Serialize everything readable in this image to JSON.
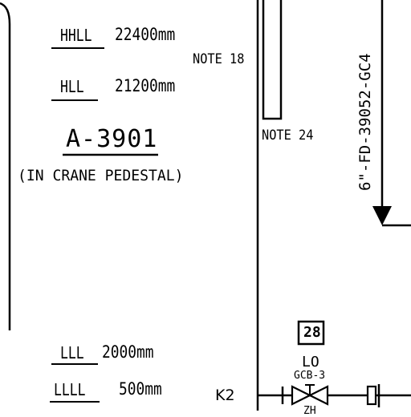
{
  "levels": [
    {
      "label": "HHLL",
      "value": "22400mm"
    },
    {
      "label": "HLL",
      "value": "21200mm"
    },
    {
      "label": "LLL",
      "value": "2000mm"
    },
    {
      "label": "LLLL",
      "value": "500mm"
    }
  ],
  "notes": {
    "note_18": "NOTE 18",
    "note_24": "NOTE 24"
  },
  "vessel": {
    "tag": "A-3901",
    "location": "(IN CRANE PEDESTAL)"
  },
  "line_number": "6\"-FD-39052-GC4",
  "valve": {
    "box_number": "28",
    "position": "LO",
    "valve_tag": "GCB-3",
    "partial_label": "ZH"
  },
  "marker": "K2"
}
